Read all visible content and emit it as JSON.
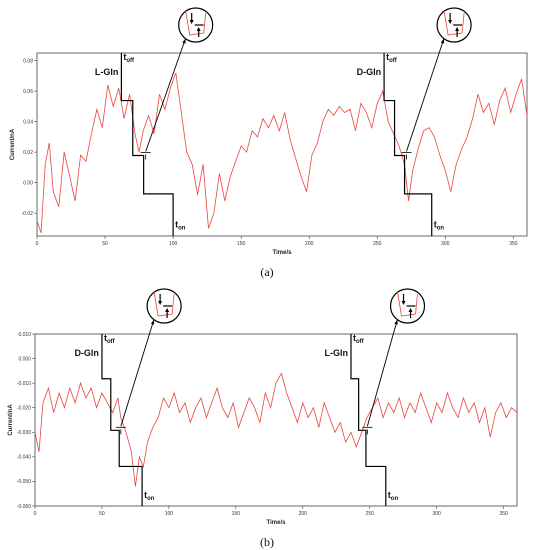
{
  "chart_data": [
    {
      "type": "line",
      "panel_label": "(a)",
      "xlabel": "Time/s",
      "ylabel": "Current/nA",
      "xlim": [
        0,
        360
      ],
      "ylim": [
        -0.035,
        0.085
      ],
      "x_ticks": [
        0,
        50,
        100,
        150,
        200,
        250,
        300,
        350
      ],
      "x_tick_labels": [
        "0",
        "50",
        "100",
        "150",
        "200",
        "250",
        "300",
        "350"
      ],
      "y_ticks": [
        -0.02,
        0,
        0.02,
        0.04,
        0.06,
        0.08
      ],
      "y_tick_labels": [
        "-0.02",
        "0.00",
        "0.02",
        "0.04",
        "0.06",
        "0.08"
      ],
      "grid": false,
      "line_color": "#e8453c",
      "series_points": [
        [
          0,
          -0.025
        ],
        [
          3,
          -0.033
        ],
        [
          6,
          0.012
        ],
        [
          9,
          0.026
        ],
        [
          12,
          -0.006
        ],
        [
          16,
          -0.016
        ],
        [
          20,
          0.02
        ],
        [
          24,
          0.004
        ],
        [
          28,
          -0.012
        ],
        [
          32,
          0.018
        ],
        [
          36,
          0.014
        ],
        [
          40,
          0.032
        ],
        [
          44,
          0.048
        ],
        [
          48,
          0.036
        ],
        [
          52,
          0.064
        ],
        [
          56,
          0.05
        ],
        [
          60,
          0.062
        ],
        [
          64,
          0.042
        ],
        [
          68,
          0.058
        ],
        [
          72,
          0.032
        ],
        [
          75,
          0.02
        ],
        [
          78,
          0.034
        ],
        [
          82,
          0.044
        ],
        [
          86,
          0.032
        ],
        [
          90,
          0.058
        ],
        [
          94,
          0.048
        ],
        [
          98,
          0.062
        ],
        [
          102,
          0.072
        ],
        [
          106,
          0.046
        ],
        [
          110,
          0.02
        ],
        [
          114,
          0.012
        ],
        [
          118,
          -0.008
        ],
        [
          122,
          0.012
        ],
        [
          126,
          -0.03
        ],
        [
          130,
          -0.02
        ],
        [
          134,
          0.006
        ],
        [
          138,
          -0.012
        ],
        [
          142,
          0.004
        ],
        [
          146,
          0.014
        ],
        [
          150,
          0.024
        ],
        [
          154,
          0.02
        ],
        [
          158,
          0.034
        ],
        [
          162,
          0.03
        ],
        [
          166,
          0.042
        ],
        [
          170,
          0.036
        ],
        [
          174,
          0.044
        ],
        [
          178,
          0.034
        ],
        [
          182,
          0.046
        ],
        [
          186,
          0.028
        ],
        [
          190,
          0.016
        ],
        [
          194,
          0.004
        ],
        [
          198,
          -0.006
        ],
        [
          202,
          0.018
        ],
        [
          206,
          0.026
        ],
        [
          210,
          0.04
        ],
        [
          214,
          0.048
        ],
        [
          218,
          0.044
        ],
        [
          222,
          0.05
        ],
        [
          226,
          0.046
        ],
        [
          230,
          0.048
        ],
        [
          234,
          0.034
        ],
        [
          238,
          0.052
        ],
        [
          242,
          0.046
        ],
        [
          246,
          0.036
        ],
        [
          250,
          0.052
        ],
        [
          254,
          0.06
        ],
        [
          258,
          0.04
        ],
        [
          262,
          0.032
        ],
        [
          266,
          0.024
        ],
        [
          270,
          0.012
        ],
        [
          273,
          -0.012
        ],
        [
          276,
          0.008
        ],
        [
          280,
          0.022
        ],
        [
          284,
          0.034
        ],
        [
          288,
          0.036
        ],
        [
          292,
          0.03
        ],
        [
          296,
          0.018
        ],
        [
          300,
          0.008
        ],
        [
          304,
          -0.006
        ],
        [
          308,
          0.012
        ],
        [
          312,
          0.022
        ],
        [
          316,
          0.03
        ],
        [
          320,
          0.042
        ],
        [
          324,
          0.058
        ],
        [
          328,
          0.046
        ],
        [
          332,
          0.052
        ],
        [
          336,
          0.038
        ],
        [
          340,
          0.054
        ],
        [
          344,
          0.062
        ],
        [
          348,
          0.046
        ],
        [
          352,
          0.058
        ],
        [
          356,
          0.068
        ],
        [
          360,
          0.044
        ]
      ],
      "annotations": [
        {
          "label": "L-Gln",
          "sub_off": "t",
          "sub_off_index": "off",
          "sub_on": "t",
          "sub_on_index": "on",
          "t_off": 62,
          "t_on": 100
        },
        {
          "label": "D-Gln",
          "sub_off": "t",
          "sub_off_index": "off",
          "sub_on": "t",
          "sub_on_index": "on",
          "t_off": 255,
          "t_on": 290
        }
      ]
    },
    {
      "type": "line",
      "panel_label": "(b)",
      "xlabel": "Time/s",
      "ylabel": "Current/nA",
      "xlim": [
        0,
        360
      ],
      "ylim": [
        -0.06,
        0.01
      ],
      "x_ticks": [
        0,
        50,
        100,
        150,
        200,
        250,
        300,
        350
      ],
      "x_tick_labels": [
        "0",
        "50",
        "100",
        "150",
        "200",
        "250",
        "300",
        "350"
      ],
      "y_ticks": [
        -0.06,
        -0.05,
        -0.04,
        -0.03,
        -0.02,
        -0.01,
        0,
        0.01
      ],
      "y_tick_labels": [
        "-0.060",
        "-0.050",
        "-0.040",
        "-0.030",
        "-0.020",
        "-0.010",
        "0.000",
        "0.010"
      ],
      "grid": false,
      "line_color": "#e8453c",
      "series_points": [
        [
          0,
          -0.03
        ],
        [
          3,
          -0.038
        ],
        [
          6,
          -0.018
        ],
        [
          10,
          -0.012
        ],
        [
          14,
          -0.022
        ],
        [
          18,
          -0.014
        ],
        [
          22,
          -0.02
        ],
        [
          26,
          -0.012
        ],
        [
          30,
          -0.018
        ],
        [
          34,
          -0.01
        ],
        [
          38,
          -0.016
        ],
        [
          42,
          -0.012
        ],
        [
          46,
          -0.02
        ],
        [
          50,
          -0.014
        ],
        [
          54,
          -0.018
        ],
        [
          58,
          -0.022
        ],
        [
          62,
          -0.016
        ],
        [
          64,
          -0.024
        ],
        [
          68,
          -0.03
        ],
        [
          72,
          -0.038
        ],
        [
          75,
          -0.052
        ],
        [
          78,
          -0.04
        ],
        [
          81,
          -0.044
        ],
        [
          84,
          -0.034
        ],
        [
          88,
          -0.028
        ],
        [
          92,
          -0.024
        ],
        [
          96,
          -0.016
        ],
        [
          100,
          -0.02
        ],
        [
          104,
          -0.014
        ],
        [
          108,
          -0.022
        ],
        [
          112,
          -0.018
        ],
        [
          116,
          -0.026
        ],
        [
          120,
          -0.02
        ],
        [
          124,
          -0.016
        ],
        [
          128,
          -0.024
        ],
        [
          132,
          -0.018
        ],
        [
          136,
          -0.012
        ],
        [
          140,
          -0.02
        ],
        [
          144,
          -0.024
        ],
        [
          148,
          -0.018
        ],
        [
          152,
          -0.028
        ],
        [
          156,
          -0.022
        ],
        [
          160,
          -0.016
        ],
        [
          164,
          -0.02
        ],
        [
          168,
          -0.026
        ],
        [
          172,
          -0.014
        ],
        [
          176,
          -0.02
        ],
        [
          180,
          -0.01
        ],
        [
          184,
          -0.006
        ],
        [
          188,
          -0.014
        ],
        [
          192,
          -0.02
        ],
        [
          196,
          -0.026
        ],
        [
          200,
          -0.018
        ],
        [
          204,
          -0.024
        ],
        [
          208,
          -0.02
        ],
        [
          212,
          -0.028
        ],
        [
          216,
          -0.018
        ],
        [
          220,
          -0.024
        ],
        [
          224,
          -0.03
        ],
        [
          228,
          -0.026
        ],
        [
          232,
          -0.034
        ],
        [
          236,
          -0.03
        ],
        [
          240,
          -0.036
        ],
        [
          244,
          -0.03
        ],
        [
          248,
          -0.024
        ],
        [
          252,
          -0.02
        ],
        [
          256,
          -0.016
        ],
        [
          260,
          -0.024
        ],
        [
          264,
          -0.018
        ],
        [
          268,
          -0.022
        ],
        [
          272,
          -0.016
        ],
        [
          276,
          -0.024
        ],
        [
          280,
          -0.018
        ],
        [
          284,
          -0.022
        ],
        [
          288,
          -0.014
        ],
        [
          292,
          -0.02
        ],
        [
          296,
          -0.026
        ],
        [
          300,
          -0.018
        ],
        [
          304,
          -0.022
        ],
        [
          308,
          -0.014
        ],
        [
          312,
          -0.02
        ],
        [
          316,
          -0.024
        ],
        [
          320,
          -0.016
        ],
        [
          324,
          -0.022
        ],
        [
          328,
          -0.018
        ],
        [
          332,
          -0.026
        ],
        [
          336,
          -0.02
        ],
        [
          340,
          -0.032
        ],
        [
          344,
          -0.022
        ],
        [
          348,
          -0.018
        ],
        [
          352,
          -0.024
        ],
        [
          356,
          -0.02
        ],
        [
          360,
          -0.022
        ]
      ],
      "annotations": [
        {
          "label": "D-Gln",
          "sub_off": "t",
          "sub_off_index": "off",
          "sub_on": "t",
          "sub_on_index": "on",
          "t_off": 50,
          "t_on": 80
        },
        {
          "label": "L-Gln",
          "sub_off": "t",
          "sub_off_index": "off",
          "sub_on": "t",
          "sub_on_index": "on",
          "t_off": 236,
          "t_on": 262
        }
      ]
    }
  ]
}
